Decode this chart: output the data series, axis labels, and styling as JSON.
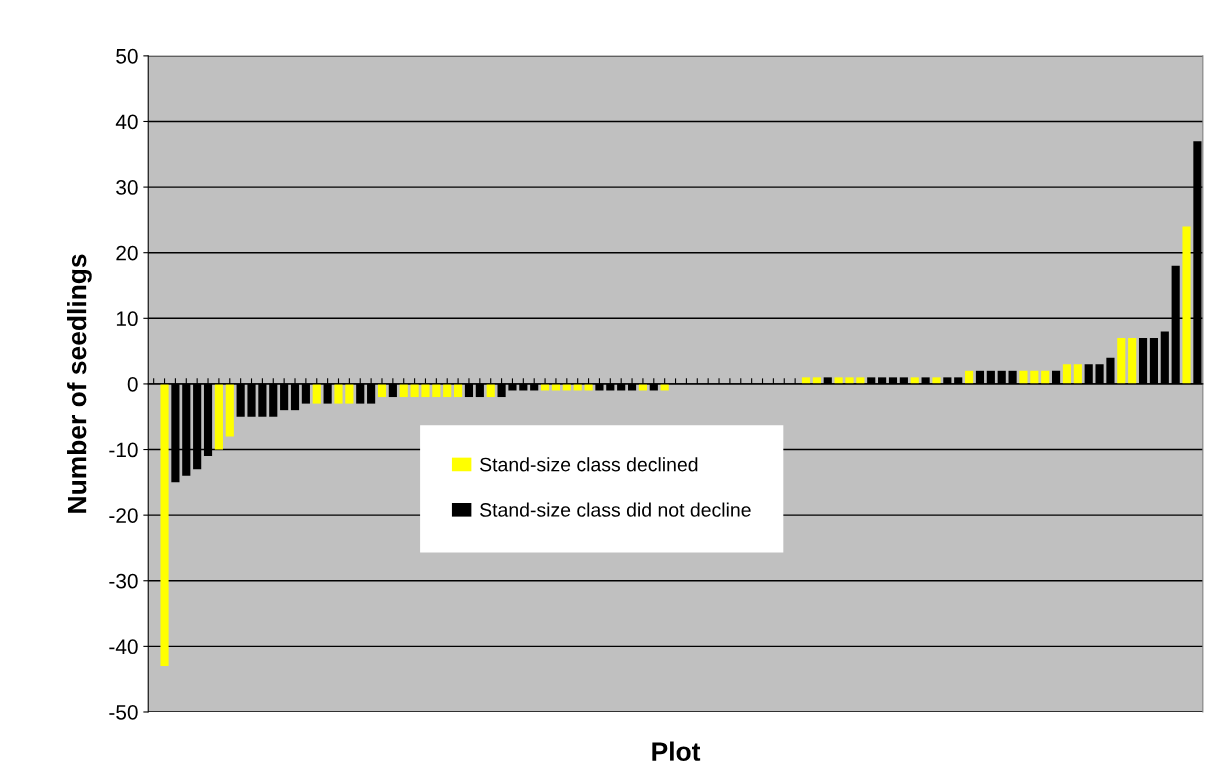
{
  "chart_data": {
    "type": "bar",
    "xlabel": "Plot",
    "ylabel": "Number of seedlings",
    "categories": [
      null,
      null,
      null,
      null,
      null,
      null,
      null,
      null,
      null,
      null,
      null,
      null,
      null,
      null,
      null,
      null,
      null,
      null,
      null,
      null,
      null,
      null,
      null,
      null,
      null,
      null,
      null,
      null,
      null,
      null,
      null,
      null,
      null,
      null,
      null,
      null,
      null,
      null,
      null,
      null,
      null,
      null,
      null,
      null,
      null,
      null,
      null,
      null,
      null,
      null,
      null,
      null,
      null,
      null,
      null,
      null,
      null,
      null,
      null,
      null,
      null,
      null,
      null,
      null,
      null,
      null,
      null,
      null,
      null,
      null,
      null,
      null,
      null,
      null,
      null,
      null,
      null,
      null,
      null,
      null,
      null,
      null,
      null,
      null,
      null,
      null,
      null,
      null,
      null,
      null,
      null,
      null,
      null,
      null,
      null,
      null,
      null
    ],
    "series": [
      {
        "name": "Stand-size class declined",
        "color": "#ffff00",
        "values": [
          null,
          -43,
          null,
          null,
          null,
          null,
          -10,
          -8,
          null,
          null,
          null,
          null,
          null,
          null,
          null,
          -3,
          null,
          -3,
          -3,
          null,
          null,
          -2,
          null,
          -2,
          -2,
          -2,
          -2,
          -2,
          -2,
          null,
          null,
          -2,
          null,
          null,
          null,
          null,
          -1,
          -1,
          -1,
          -1,
          -1,
          null,
          null,
          null,
          null,
          -1,
          null,
          -1,
          null,
          null,
          null,
          null,
          null,
          null,
          null,
          null,
          null,
          null,
          null,
          null,
          1,
          1,
          null,
          1,
          1,
          1,
          null,
          null,
          null,
          null,
          1,
          null,
          1,
          null,
          null,
          2,
          null,
          null,
          null,
          null,
          2,
          2,
          2,
          null,
          3,
          3,
          null,
          null,
          null,
          7,
          7,
          null,
          null,
          null,
          null,
          24,
          null
        ]
      },
      {
        "name": "Stand-size class did not decline",
        "color": "#000000",
        "values": [
          0,
          null,
          -15,
          -14,
          -13,
          -11,
          null,
          null,
          -5,
          -5,
          -5,
          -5,
          -4,
          -4,
          -3,
          null,
          -3,
          null,
          null,
          -3,
          -3,
          null,
          -2,
          null,
          null,
          null,
          null,
          null,
          null,
          -2,
          -2,
          null,
          -2,
          -1,
          -1,
          -1,
          null,
          null,
          null,
          null,
          null,
          -1,
          -1,
          -1,
          -1,
          null,
          -1,
          null,
          0,
          0,
          0,
          0,
          0,
          0,
          0,
          0,
          0,
          0,
          0,
          0,
          null,
          null,
          1,
          null,
          null,
          null,
          1,
          1,
          1,
          1,
          null,
          1,
          null,
          1,
          1,
          null,
          2,
          2,
          2,
          2,
          null,
          null,
          null,
          2,
          null,
          null,
          3,
          3,
          4,
          null,
          null,
          7,
          7,
          8,
          18,
          null,
          37
        ]
      }
    ],
    "ylim": [
      -50,
      50
    ],
    "yticks": [
      -50,
      -40,
      -30,
      -20,
      -10,
      0,
      10,
      20,
      30,
      40,
      50
    ],
    "grid": "y",
    "legend": "center"
  }
}
